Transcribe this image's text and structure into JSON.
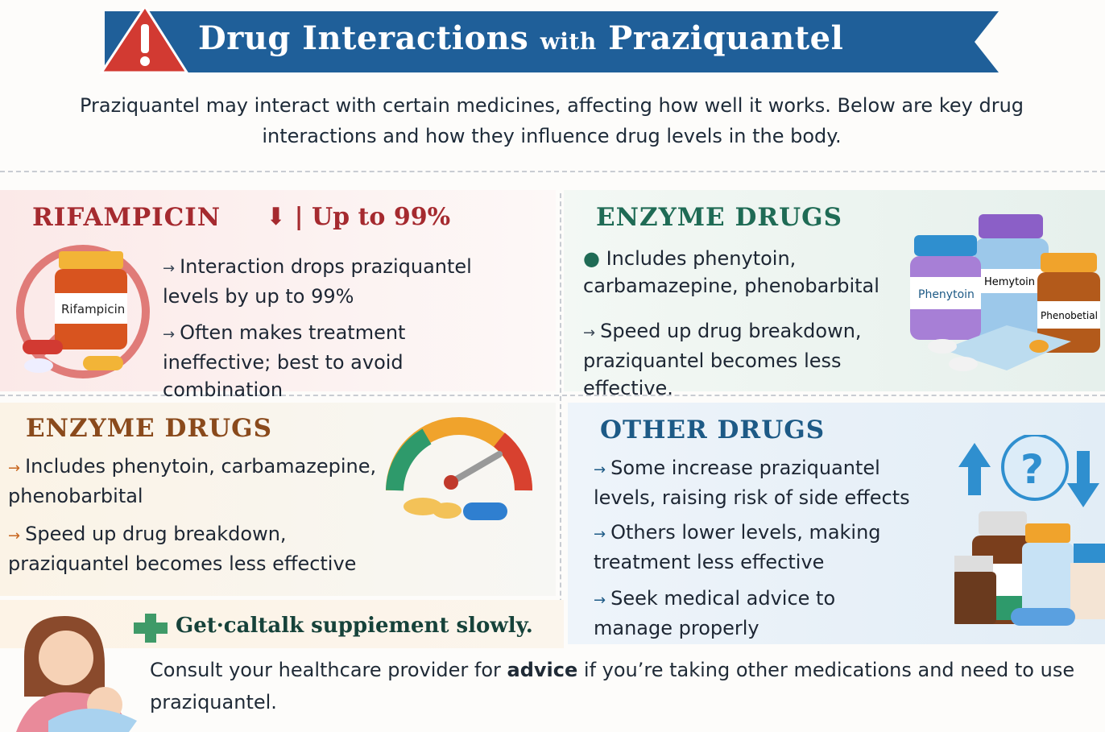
{
  "header": {
    "title_main": "Drug Interactions ",
    "title_with": "with",
    "title_end": " Praziquantel",
    "warning_icon": "warning-triangle-icon"
  },
  "intro": "Praziquantel may interact with certain medicines, affecting how well it works. Below are key drug interactions and how they influence drug levels in the body.",
  "colors": {
    "banner": "#1f5f99",
    "warning": "#d23a32",
    "rifampicin": "#a52a2f",
    "enzyme_green": "#1f6b55",
    "enzyme_brown": "#8a4a1c",
    "other_blue": "#1d5a86",
    "plus": "#3f9a68"
  },
  "rifampicin": {
    "heading": "RIFAMPICIN",
    "badge": "Up to 99%",
    "bottle_label": "Rifampicin",
    "points": [
      "Interaction drops praziquantel levels by up to 99%",
      "Often makes treatment ineffective; best to avoid combination"
    ]
  },
  "enzyme_top": {
    "heading": "ENZYME DRUGS",
    "points": [
      "Includes phenytoin, carbamazepine, phenobarbital",
      "Speed up drug breakdown, praziquantel becomes less effective."
    ],
    "bottle_labels": [
      "Phenytoin",
      "Hemytoin",
      "Phenobetial"
    ]
  },
  "enzyme_bottom": {
    "heading": "ENZYME DRUGS",
    "points": [
      "Includes phenytoin, carbamazepine, phenobarbital",
      "Speed up drug breakdown, praziquantel becomes less effective"
    ]
  },
  "other": {
    "heading": "OTHER DRUGS",
    "points": [
      "Some increase praziquantel levels, raising risk of side effects",
      "Others lower levels, making treatment less effective",
      "Seek medical advice to manage properly"
    ]
  },
  "footer": {
    "tip": "Get·caltalk suppiement slowly.",
    "note_pre": "Consult your healthcare provider for ",
    "note_bold": "advice",
    "note_post": " if you’re taking other medications and need to use praziquantel."
  }
}
